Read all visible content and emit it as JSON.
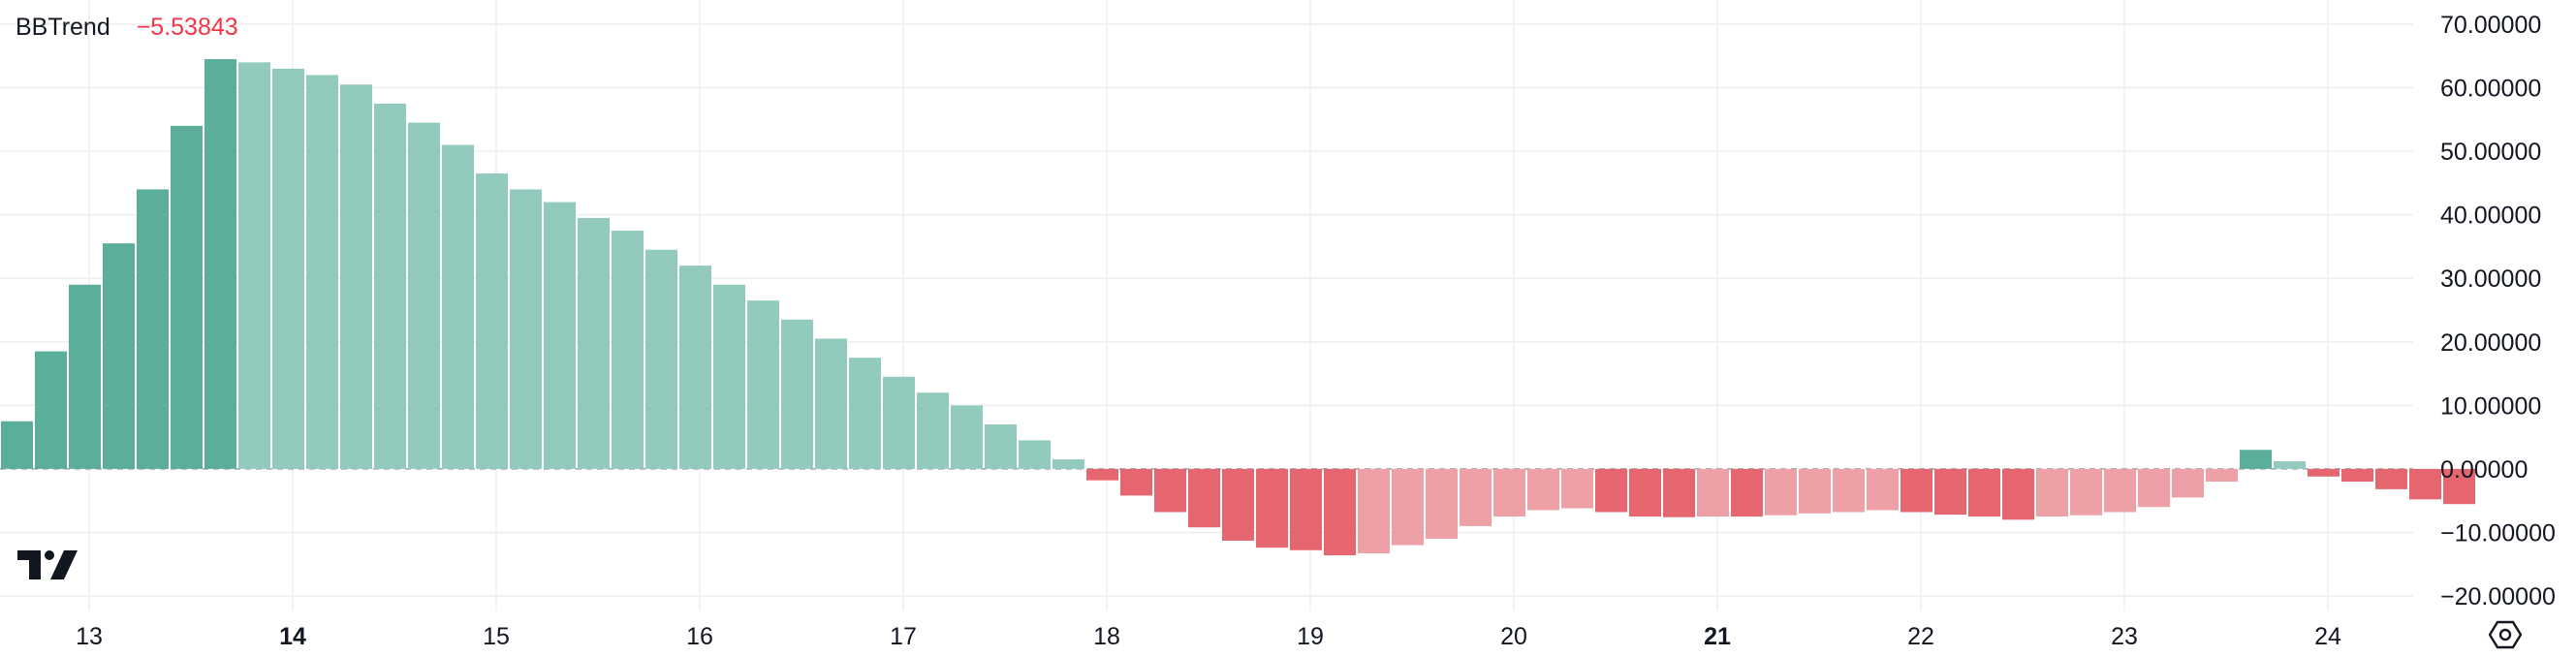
{
  "legend": {
    "title": "BBTrend",
    "value": "−5.53843"
  },
  "colors": {
    "positive_strong": "#5aae9a",
    "positive_weak": "#92cabd",
    "negative_strong": "#e6666f",
    "negative_weak": "#eda0a6",
    "grid": "#eeeef0",
    "zero_line": "#9aa0a8",
    "text": "#131722",
    "legend_value": "#f23645"
  },
  "icons": {
    "logo": "tradingview-logo-icon",
    "settings": "settings-icon"
  },
  "chart_data": {
    "type": "bar",
    "title": "BBTrend",
    "current_value": -5.53843,
    "ylim": [
      -20,
      70
    ],
    "y_ticks": [
      "70.00000",
      "60.00000",
      "50.00000",
      "40.00000",
      "30.00000",
      "20.00000",
      "10.00000",
      "0.00000",
      "−10.00000",
      "−20.00000"
    ],
    "x_ticks": [
      {
        "label": "13",
        "bold": false
      },
      {
        "label": "14",
        "bold": true
      },
      {
        "label": "15",
        "bold": false
      },
      {
        "label": "16",
        "bold": false
      },
      {
        "label": "17",
        "bold": false
      },
      {
        "label": "18",
        "bold": false
      },
      {
        "label": "19",
        "bold": false
      },
      {
        "label": "20",
        "bold": false
      },
      {
        "label": "21",
        "bold": true
      },
      {
        "label": "22",
        "bold": false
      },
      {
        "label": "23",
        "bold": false
      },
      {
        "label": "24",
        "bold": false
      }
    ],
    "grid": true,
    "zero_line": "dashed",
    "series": [
      {
        "values": [
          7.5,
          18.5,
          29,
          35.5,
          44,
          54,
          64.5,
          64,
          63,
          62,
          60.5,
          57.5,
          54.5,
          51,
          46.5,
          44,
          42,
          39.5,
          37.5,
          34.5,
          32,
          29,
          26.5,
          23.5,
          20.5,
          17.5,
          14.5,
          12,
          10,
          7,
          4.5,
          1.5,
          -1.8,
          -4.2,
          -6.8,
          -9.2,
          -11.3,
          -12.4,
          -12.8,
          -13.6,
          -13.3,
          -12,
          -11,
          -9,
          -7.5,
          -6.5,
          -6.2,
          -6.8,
          -7.5,
          -7.6,
          -7.5,
          -7.5,
          -7.3,
          -7,
          -6.8,
          -6.5,
          -6.8,
          -7.2,
          -7.5,
          -8,
          -7.5,
          -7.3,
          -6.8,
          -6,
          -4.5,
          -2,
          3,
          1.2,
          -1.2,
          -2,
          -3.2,
          -4.8,
          -5.53843
        ]
      }
    ]
  }
}
